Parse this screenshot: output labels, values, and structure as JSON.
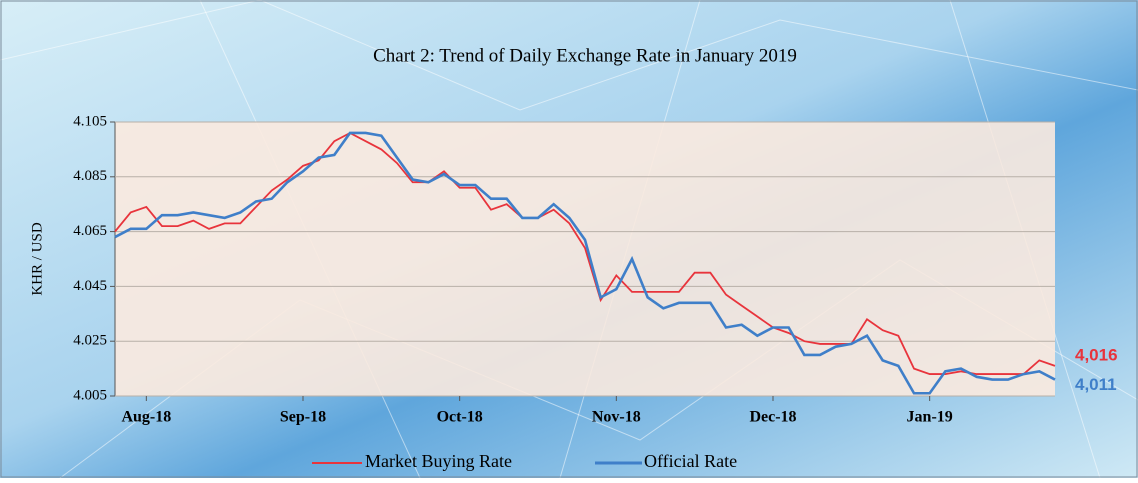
{
  "chart_data": {
    "type": "line",
    "title": "Chart 2: Trend of Daily Exchange Rate in January 2019",
    "y_label": "KHR / USD",
    "categories": [
      null,
      null,
      "Aug-18",
      null,
      null,
      null,
      null,
      null,
      null,
      null,
      null,
      null,
      "Sep-18",
      null,
      null,
      null,
      null,
      null,
      null,
      null,
      null,
      null,
      "Oct-18",
      null,
      null,
      null,
      null,
      null,
      null,
      null,
      null,
      null,
      "Nov-18",
      null,
      null,
      null,
      null,
      null,
      null,
      null,
      null,
      null,
      "Dec-18",
      null,
      null,
      null,
      null,
      null,
      null,
      null,
      null,
      null,
      "Jan-19",
      null,
      null,
      null,
      null,
      null,
      null,
      null,
      null
    ],
    "series": [
      {
        "name": "Market Buying Rate",
        "color": "#e8343c",
        "values": [
          4.065,
          4.072,
          4.074,
          4.067,
          4.067,
          4.069,
          4.066,
          4.068,
          4.068,
          4.074,
          4.08,
          4.084,
          4.089,
          4.091,
          4.098,
          4.101,
          4.098,
          4.095,
          4.09,
          4.083,
          4.083,
          4.087,
          4.081,
          4.081,
          4.073,
          4.075,
          4.07,
          4.07,
          4.073,
          4.068,
          4.059,
          4.04,
          4.049,
          4.043,
          4.043,
          4.043,
          4.043,
          4.05,
          4.05,
          4.042,
          4.038,
          4.034,
          4.03,
          4.028,
          4.025,
          4.024,
          4.024,
          4.024,
          4.033,
          4.029,
          4.027,
          4.015,
          4.013,
          4.013,
          4.014,
          4.013,
          4.013,
          4.013,
          4.013,
          4.018,
          4.016
        ],
        "value_labels": [
          null,
          null,
          null,
          null,
          null,
          null,
          null,
          null,
          null,
          null,
          null,
          null,
          null,
          null,
          null,
          null,
          null,
          null,
          null,
          null,
          null,
          null,
          null,
          null,
          null,
          null,
          null,
          null,
          null,
          null,
          null,
          null,
          null,
          null,
          null,
          null,
          null,
          null,
          null,
          null,
          null,
          null,
          null,
          null,
          null,
          null,
          null,
          null,
          null,
          null,
          null,
          null,
          null,
          null,
          null,
          null,
          null,
          null,
          null,
          null,
          "4,016"
        ]
      },
      {
        "name": "Official Rate",
        "color": "#3f7fc9",
        "values": [
          4.063,
          4.066,
          4.066,
          4.071,
          4.071,
          4.072,
          4.071,
          4.07,
          4.072,
          4.076,
          4.077,
          4.083,
          4.087,
          4.092,
          4.093,
          4.101,
          4.101,
          4.1,
          4.092,
          4.084,
          4.083,
          4.086,
          4.082,
          4.082,
          4.077,
          4.077,
          4.07,
          4.07,
          4.075,
          4.07,
          4.062,
          4.041,
          4.044,
          4.055,
          4.041,
          4.037,
          4.039,
          4.039,
          4.039,
          4.03,
          4.031,
          4.027,
          4.03,
          4.03,
          4.02,
          4.02,
          4.023,
          4.024,
          4.027,
          4.018,
          4.016,
          4.006,
          4.006,
          4.014,
          4.015,
          4.012,
          4.011,
          4.011,
          4.013,
          4.014,
          4.011
        ],
        "value_labels": [
          null,
          null,
          null,
          null,
          null,
          null,
          null,
          null,
          null,
          null,
          null,
          null,
          null,
          null,
          null,
          null,
          null,
          null,
          null,
          null,
          null,
          null,
          null,
          null,
          null,
          null,
          null,
          null,
          null,
          null,
          null,
          null,
          null,
          null,
          null,
          null,
          null,
          null,
          null,
          null,
          null,
          null,
          null,
          null,
          null,
          null,
          null,
          null,
          null,
          null,
          null,
          null,
          null,
          null,
          null,
          null,
          null,
          null,
          null,
          null,
          "4,011"
        ]
      }
    ],
    "ylim": [
      4.005,
      4.105
    ],
    "yticks": [
      4.005,
      4.025,
      4.045,
      4.065,
      4.085,
      4.105
    ],
    "grid": true
  }
}
